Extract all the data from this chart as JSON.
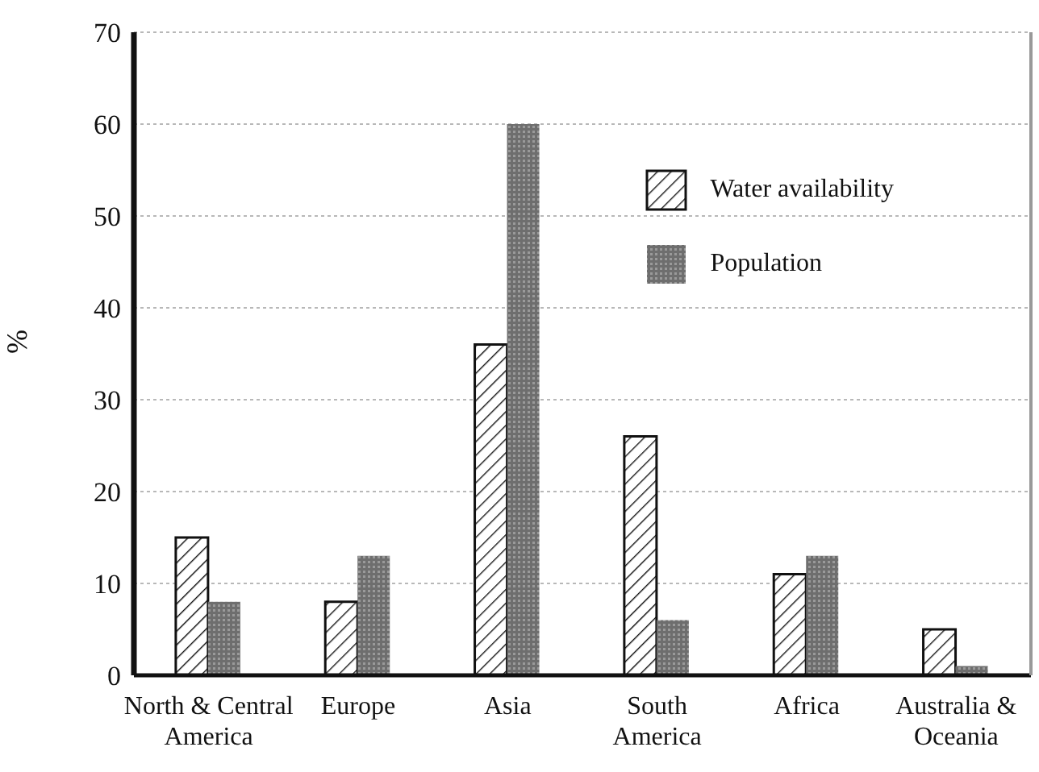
{
  "chart_data": {
    "type": "bar",
    "ylabel": "%",
    "categories": [
      "North & Central America",
      "Europe",
      "Asia",
      "South America",
      "Africa",
      "Australia & Oceania"
    ],
    "series": [
      {
        "name": "Water availability",
        "color": "#111111",
        "values": [
          15,
          8,
          36,
          26,
          11,
          5
        ]
      },
      {
        "name": "Population",
        "color": "#6e6e6e",
        "values": [
          8,
          13,
          60,
          6,
          13,
          1
        ]
      }
    ],
    "ylim": [
      0,
      70
    ],
    "yticks": [
      0,
      10,
      20,
      30,
      40,
      50,
      60,
      70
    ],
    "grid": "y",
    "legend": "top right"
  }
}
